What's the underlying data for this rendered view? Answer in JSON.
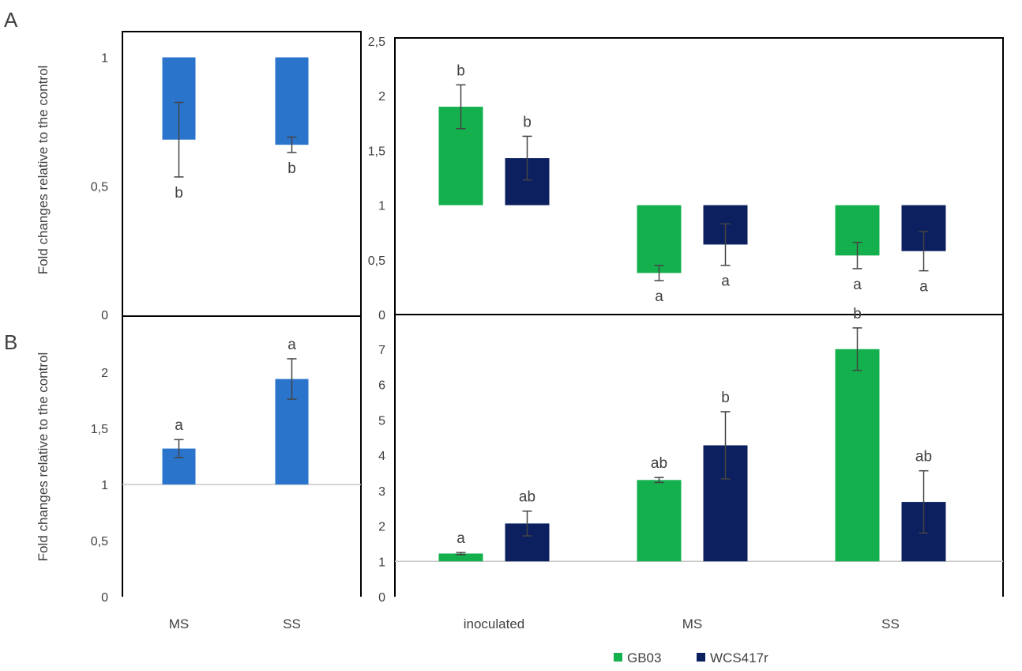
{
  "colors": {
    "single": "#2a74cc",
    "GB03": "#15b04e",
    "WCS417r": "#0c1f5e"
  },
  "chart_data": [
    {
      "id": "A-left",
      "type": "bar",
      "panel_label": "A",
      "ylabel": "Fold changes relative to the control",
      "categories": [
        "MS",
        "SS"
      ],
      "baseline": 1,
      "ylim": [
        0,
        1.1
      ],
      "yticks": [
        0,
        0.5,
        1
      ],
      "ytick_labels": [
        "0",
        "0,5",
        "1"
      ],
      "series": [
        {
          "values": [
            0.68,
            0.66
          ],
          "errors": [
            0.145,
            0.03
          ],
          "labels": [
            "b",
            "b"
          ]
        }
      ]
    },
    {
      "id": "A-right",
      "type": "bar",
      "categories": [
        "inoculated",
        "MS",
        "SS"
      ],
      "baseline": 1,
      "ylim": [
        0,
        2.5
      ],
      "yticks": [
        0,
        0.5,
        1,
        1.5,
        2,
        2.5
      ],
      "ytick_labels": [
        "0",
        "0,5",
        "1",
        "1,5",
        "2",
        "2,5"
      ],
      "series": [
        {
          "name": "GB03",
          "values": [
            1.9,
            0.38,
            0.54
          ],
          "errors": [
            0.2,
            0.07,
            0.12
          ],
          "labels": [
            "b",
            "a",
            "a"
          ]
        },
        {
          "name": "WCS417r",
          "values": [
            1.43,
            0.64,
            0.58
          ],
          "errors": [
            0.2,
            0.19,
            0.18
          ],
          "labels": [
            "b",
            "a",
            "a"
          ]
        }
      ]
    },
    {
      "id": "B-left",
      "type": "bar",
      "panel_label": "B",
      "ylabel": "Fold changes relative to the control",
      "categories": [
        "MS",
        "SS"
      ],
      "baseline": 1,
      "ylim": [
        0,
        2.5
      ],
      "yticks": [
        0,
        0.5,
        1,
        1.5,
        2
      ],
      "ytick_labels": [
        "0",
        "0,5",
        "1",
        "1,5",
        "2"
      ],
      "series": [
        {
          "values": [
            1.32,
            1.94
          ],
          "errors": [
            0.08,
            0.18
          ],
          "labels": [
            "a",
            "a"
          ]
        }
      ]
    },
    {
      "id": "B-right",
      "type": "bar",
      "categories": [
        "inoculated",
        "MS",
        "SS"
      ],
      "baseline": 1,
      "ylim": [
        0,
        8
      ],
      "yticks": [
        0,
        1,
        2,
        3,
        4,
        5,
        6,
        7
      ],
      "ytick_labels": [
        "0",
        "1",
        "2",
        "3",
        "4",
        "5",
        "6",
        "7"
      ],
      "series": [
        {
          "name": "GB03",
          "values": [
            1.22,
            3.3,
            7.0
          ],
          "errors": [
            0.03,
            0.07,
            0.6
          ],
          "labels": [
            "a",
            "ab",
            "b"
          ]
        },
        {
          "name": "WCS417r",
          "values": [
            2.07,
            4.28,
            2.68
          ],
          "errors": [
            0.35,
            0.95,
            0.88
          ],
          "labels": [
            "ab",
            "b",
            "ab"
          ]
        }
      ]
    }
  ],
  "legend": [
    {
      "name": "GB03",
      "color": "#15b04e"
    },
    {
      "name": "WCS417r",
      "color": "#0c1f5e"
    }
  ]
}
